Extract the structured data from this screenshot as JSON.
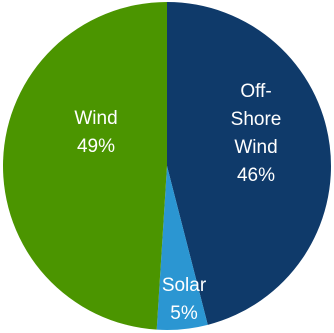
{
  "chart_data": {
    "type": "pie",
    "slices": [
      {
        "label_lines": [
          "Off-",
          "Shore",
          "Wind"
        ],
        "value": 46,
        "value_label": "46%",
        "color": "#0f3a6a"
      },
      {
        "label_lines": [
          "Solar"
        ],
        "value": 5,
        "value_label": "5%",
        "color": "#2b96d2"
      },
      {
        "label_lines": [
          "Wind"
        ],
        "value": 49,
        "value_label": "49%",
        "color": "#4b9500"
      }
    ],
    "title": "",
    "legend": "none",
    "start": "12 o'clock",
    "direction": "clockwise"
  }
}
